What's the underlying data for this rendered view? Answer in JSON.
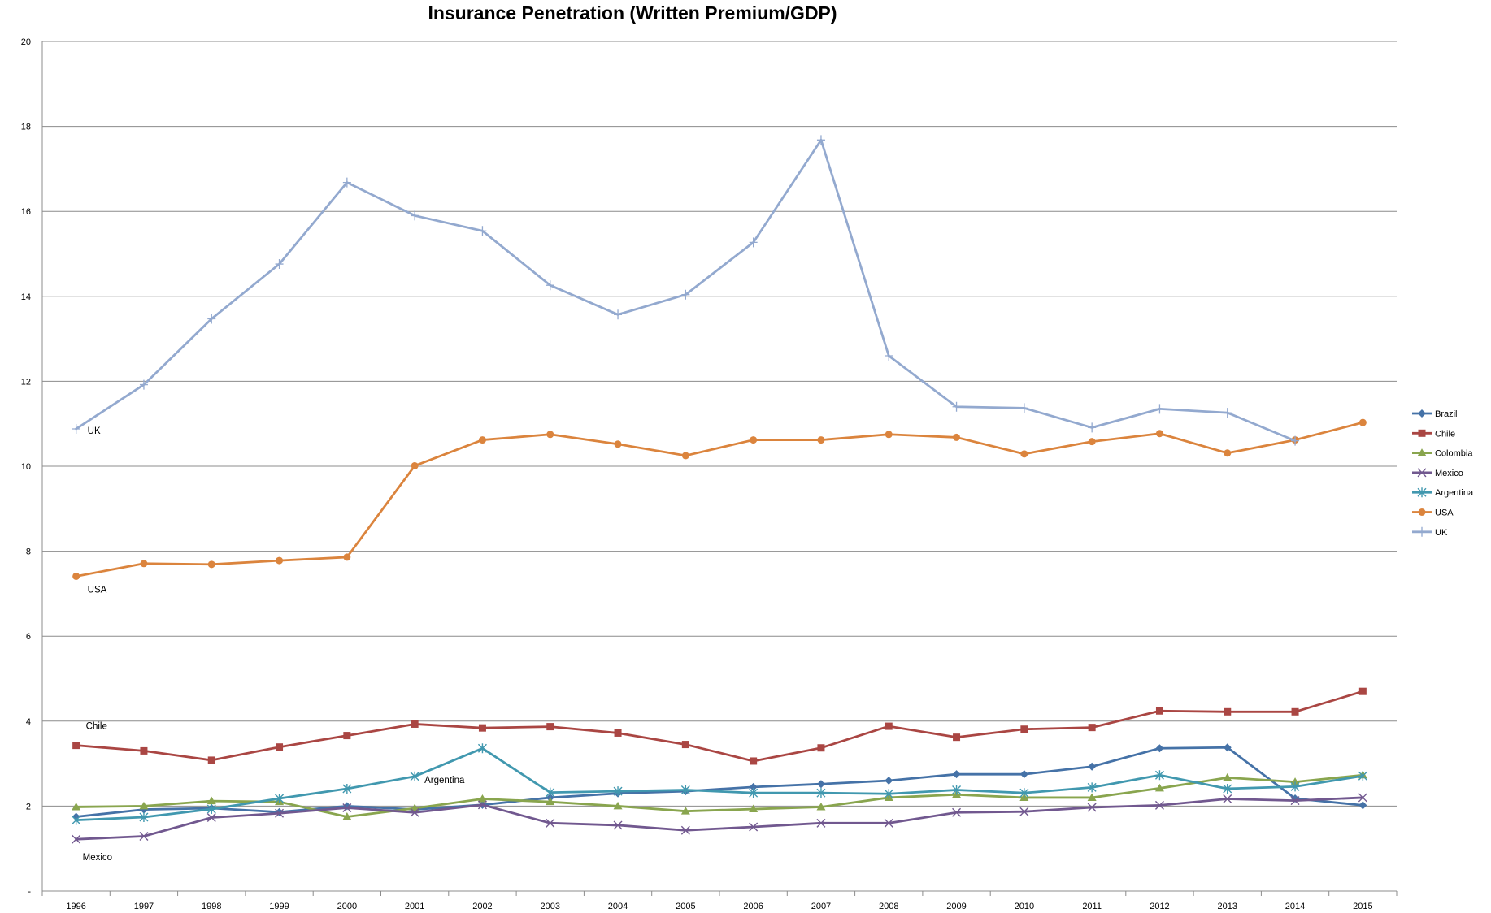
{
  "chart_data": {
    "type": "line",
    "title": "Insurance Penetration (Written Premium/GDP)",
    "xlabel": "",
    "ylabel": "",
    "ylim": [
      0,
      20
    ],
    "y_ticks": [
      "-",
      "2",
      "4",
      "6",
      "8",
      "10",
      "12",
      "14",
      "16",
      "18",
      "20"
    ],
    "y_tick_values": [
      0,
      2,
      4,
      6,
      8,
      10,
      12,
      14,
      16,
      18,
      20
    ],
    "grid": true,
    "legend_position": "right",
    "categories": [
      "1996",
      "1997",
      "1998",
      "1999",
      "2000",
      "2001",
      "2002",
      "2003",
      "2004",
      "2005",
      "2006",
      "2007",
      "2008",
      "2009",
      "2010",
      "2011",
      "2012",
      "2013",
      "2014",
      "2015"
    ],
    "series": [
      {
        "name": "Brazil",
        "color": "#4572A7",
        "marker": "diamond",
        "values": [
          1.75,
          1.92,
          1.95,
          1.86,
          2.0,
          1.92,
          2.03,
          2.2,
          2.3,
          2.35,
          2.45,
          2.52,
          2.6,
          2.75,
          2.75,
          2.93,
          3.36,
          3.38,
          2.18,
          2.02
        ]
      },
      {
        "name": "Chile",
        "color": "#AA4643",
        "marker": "square",
        "values": [
          3.43,
          3.3,
          3.08,
          3.39,
          3.66,
          3.93,
          3.84,
          3.87,
          3.72,
          3.45,
          3.06,
          3.37,
          3.88,
          3.62,
          3.81,
          3.85,
          4.24,
          4.22,
          4.22,
          4.7
        ]
      },
      {
        "name": "Colombia",
        "color": "#89A54E",
        "marker": "triangle",
        "values": [
          1.98,
          2.0,
          2.12,
          2.1,
          1.75,
          1.95,
          2.17,
          2.1,
          2.0,
          1.88,
          1.93,
          1.98,
          2.2,
          2.27,
          2.2,
          2.2,
          2.42,
          2.67,
          2.57,
          2.73
        ]
      },
      {
        "name": "Mexico",
        "color": "#71588F",
        "marker": "x",
        "values": [
          1.22,
          1.29,
          1.73,
          1.83,
          1.96,
          1.85,
          2.03,
          1.6,
          1.55,
          1.43,
          1.51,
          1.6,
          1.6,
          1.85,
          1.87,
          1.97,
          2.02,
          2.17,
          2.13,
          2.2
        ]
      },
      {
        "name": "Argentina",
        "color": "#4198AF",
        "marker": "star",
        "values": [
          1.67,
          1.74,
          1.93,
          2.18,
          2.41,
          2.7,
          3.36,
          2.32,
          2.35,
          2.38,
          2.31,
          2.31,
          2.29,
          2.38,
          2.31,
          2.44,
          2.73,
          2.41,
          2.46,
          2.71
        ]
      },
      {
        "name": "USA",
        "color": "#DB843D",
        "marker": "circle",
        "values": [
          7.41,
          7.71,
          7.69,
          7.78,
          7.86,
          10.01,
          10.62,
          10.75,
          10.52,
          10.25,
          10.62,
          10.62,
          10.75,
          10.68,
          10.29,
          10.58,
          10.77,
          10.31,
          10.62,
          11.03
        ]
      },
      {
        "name": "UK",
        "color": "#93A9CF",
        "marker": "plus",
        "values": [
          10.88,
          11.92,
          13.47,
          14.76,
          16.68,
          15.9,
          15.54,
          14.26,
          13.57,
          14.04,
          15.27,
          17.68,
          12.6,
          11.4,
          11.37,
          10.91,
          11.35,
          11.26,
          10.6,
          null
        ]
      }
    ],
    "annotations": [
      {
        "text": "UK",
        "series": "UK",
        "index": 0
      },
      {
        "text": "USA",
        "series": "USA",
        "index": 0
      },
      {
        "text": "Chile",
        "series": "Chile",
        "index": 0
      },
      {
        "text": "Mexico",
        "series": "Mexico",
        "index": 0
      },
      {
        "text": "Argentina",
        "series": "Argentina",
        "index": 5
      }
    ]
  }
}
